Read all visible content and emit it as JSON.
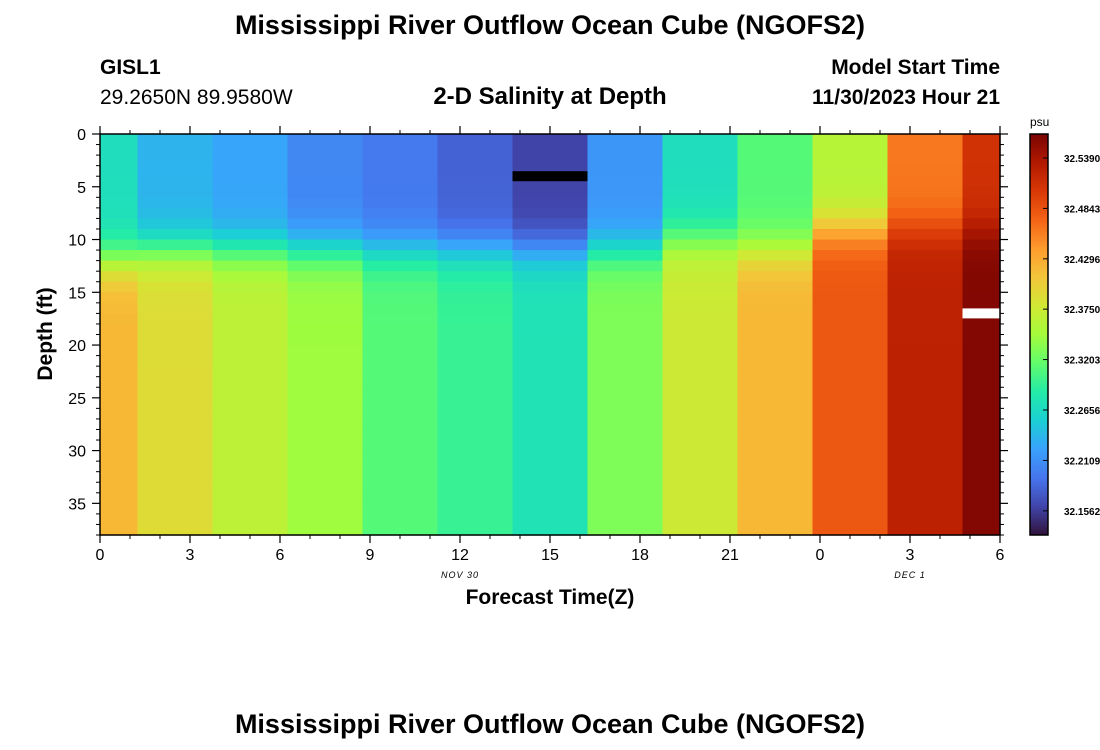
{
  "header": {
    "title": "Mississippi River Outflow Ocean Cube (NGOFS2)",
    "station_id": "GISL1",
    "station_coords": "29.2650N  89.9580W",
    "subtitle": "2-D Salinity at Depth",
    "model_start_label": "Model Start Time",
    "model_start_value": "11/30/2023 Hour 21"
  },
  "footer": {
    "title": "Mississippi River Outflow Ocean Cube (NGOFS2)"
  },
  "chart_data": {
    "type": "heatmap",
    "title": "2-D Salinity at Depth",
    "xlabel": "Forecast Time(Z)",
    "ylabel": "Depth (ft)",
    "x_ticks": [
      "0",
      "3",
      "6",
      "9",
      "12",
      "15",
      "18",
      "21",
      "0",
      "3",
      "6"
    ],
    "x_tick_hours": [
      0,
      3,
      6,
      9,
      12,
      15,
      18,
      21,
      24,
      27,
      30
    ],
    "x_range_hours": [
      0,
      30
    ],
    "date_labels": [
      {
        "label": "NOV 30",
        "hour": 12
      },
      {
        "label": "DEC 1",
        "hour": 27
      }
    ],
    "y_ticks": [
      0,
      5,
      10,
      15,
      20,
      25,
      30,
      35
    ],
    "ylim": [
      0,
      38
    ],
    "colorbar": {
      "unit": "psu",
      "min": 32.13,
      "max": 32.565,
      "ticks": [
        "32.5390",
        "32.4843",
        "32.4296",
        "32.3750",
        "32.3203",
        "32.2656",
        "32.2109",
        "32.1562"
      ],
      "tick_values": [
        32.539,
        32.4843,
        32.4296,
        32.375,
        32.3203,
        32.2656,
        32.2109,
        32.1562
      ],
      "colors": [
        "#30123b",
        "#4145ab",
        "#4675ed",
        "#39a2fc",
        "#1bcfd4",
        "#24eca6",
        "#61fc6c",
        "#a4fc3b",
        "#d1e834",
        "#f3c63a",
        "#fe9b2d",
        "#f36315",
        "#d93806",
        "#b11901",
        "#7a0402"
      ]
    },
    "columns": [
      {
        "hour_start": 0,
        "hour_end": 1.25,
        "surface": 32.27,
        "bottom": 32.42,
        "interface_depth": 12
      },
      {
        "hour_start": 1.25,
        "hour_end": 3.75,
        "surface": 32.235,
        "bottom": 32.39,
        "interface_depth": 11
      },
      {
        "hour_start": 3.75,
        "hour_end": 6.25,
        "surface": 32.225,
        "bottom": 32.365,
        "interface_depth": 11
      },
      {
        "hour_start": 6.25,
        "hour_end": 8.75,
        "surface": 32.205,
        "bottom": 32.345,
        "interface_depth": 11
      },
      {
        "hour_start": 8.75,
        "hour_end": 11.25,
        "surface": 32.195,
        "bottom": 32.31,
        "interface_depth": 11
      },
      {
        "hour_start": 11.25,
        "hour_end": 13.75,
        "surface": 32.18,
        "bottom": 32.295,
        "interface_depth": 11
      },
      {
        "hour_start": 13.75,
        "hour_end": 16.25,
        "surface": 32.16,
        "bottom": 32.275,
        "interface_depth": 11
      },
      {
        "hour_start": 16.25,
        "hour_end": 18.75,
        "surface": 32.215,
        "bottom": 32.33,
        "interface_depth": 11
      },
      {
        "hour_start": 18.75,
        "hour_end": 21.25,
        "surface": 32.27,
        "bottom": 32.375,
        "interface_depth": 10
      },
      {
        "hour_start": 21.25,
        "hour_end": 23.75,
        "surface": 32.31,
        "bottom": 32.42,
        "interface_depth": 11
      },
      {
        "hour_start": 23.75,
        "hour_end": 26.25,
        "surface": 32.36,
        "bottom": 32.48,
        "interface_depth": 9
      },
      {
        "hour_start": 26.25,
        "hour_end": 28.75,
        "surface": 32.46,
        "bottom": 32.525,
        "interface_depth": 9
      },
      {
        "hour_start": 28.75,
        "hour_end": 30,
        "surface": 32.51,
        "bottom": 32.56,
        "interface_depth": 9
      }
    ],
    "markers": [
      {
        "name": "shallow-marker",
        "hour_start": 13.75,
        "hour_end": 16.25,
        "depth": 4,
        "color": "#000000"
      },
      {
        "name": "deep-marker",
        "hour_start": 28.75,
        "hour_end": 30,
        "depth": 17,
        "color": "#ffffff"
      }
    ]
  }
}
